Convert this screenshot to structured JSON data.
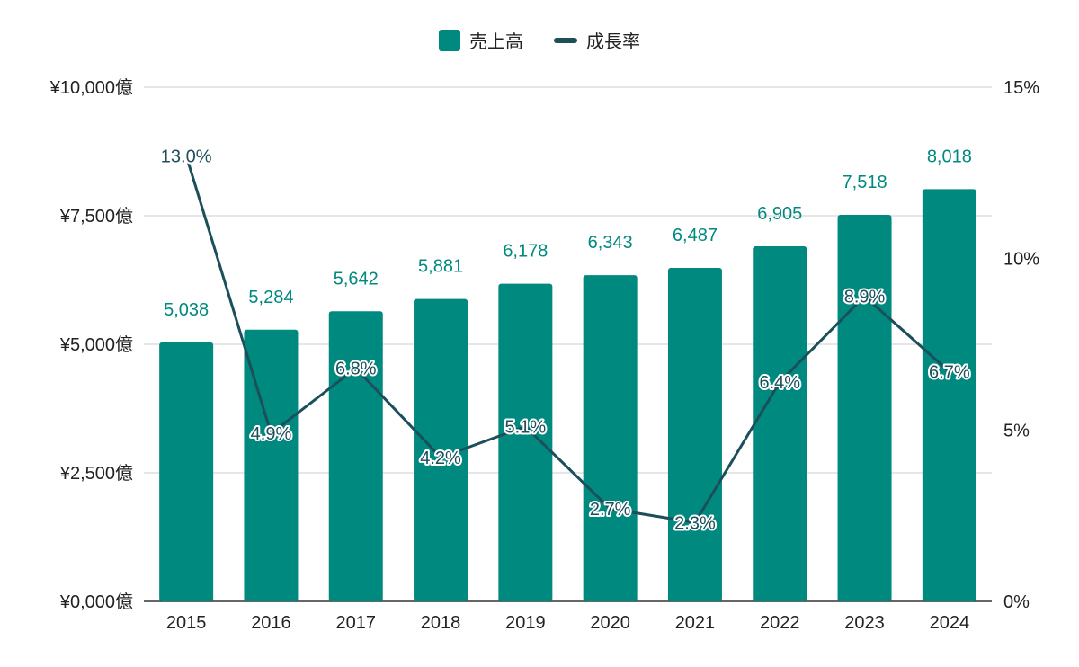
{
  "legend": {
    "bar_label": "売上高",
    "line_label": "成長率"
  },
  "colors": {
    "bar": "#00897F",
    "line": "#1B4F5A",
    "bar_label": "#00897F",
    "grid": "#CCCCCC",
    "axis": "#333333"
  },
  "chart_data": {
    "type": "bar",
    "categories": [
      "2015",
      "2016",
      "2017",
      "2018",
      "2019",
      "2020",
      "2021",
      "2022",
      "2023",
      "2024"
    ],
    "series": [
      {
        "name": "売上高",
        "type": "bar",
        "axis": "left",
        "values": [
          5038,
          5284,
          5642,
          5881,
          6178,
          6343,
          6487,
          6905,
          7518,
          8018
        ],
        "labels": [
          "5,038",
          "5,284",
          "5,642",
          "5,881",
          "6,178",
          "6,343",
          "6,487",
          "6,905",
          "7,518",
          "8,018"
        ]
      },
      {
        "name": "成長率",
        "type": "line",
        "axis": "right",
        "values": [
          13.0,
          4.9,
          6.8,
          4.2,
          5.1,
          2.7,
          2.3,
          6.4,
          8.9,
          6.7
        ],
        "labels": [
          "13.0%",
          "4.9%",
          "6.8%",
          "4.2%",
          "5.1%",
          "2.7%",
          "2.3%",
          "6.4%",
          "8.9%",
          "6.7%"
        ]
      }
    ],
    "y_left": {
      "ylim": [
        0,
        10000
      ],
      "ticks": [
        0,
        2500,
        5000,
        7500,
        10000
      ],
      "tick_labels": [
        "¥0,000億",
        "¥2,500億",
        "¥5,000億",
        "¥7,500億",
        "¥10,000億"
      ]
    },
    "y_right": {
      "ylim": [
        0,
        15
      ],
      "ticks": [
        0,
        5,
        10,
        15
      ],
      "tick_labels": [
        "0%",
        "5%",
        "10%",
        "15%"
      ]
    },
    "grid": true,
    "legend_position": "top-center"
  }
}
